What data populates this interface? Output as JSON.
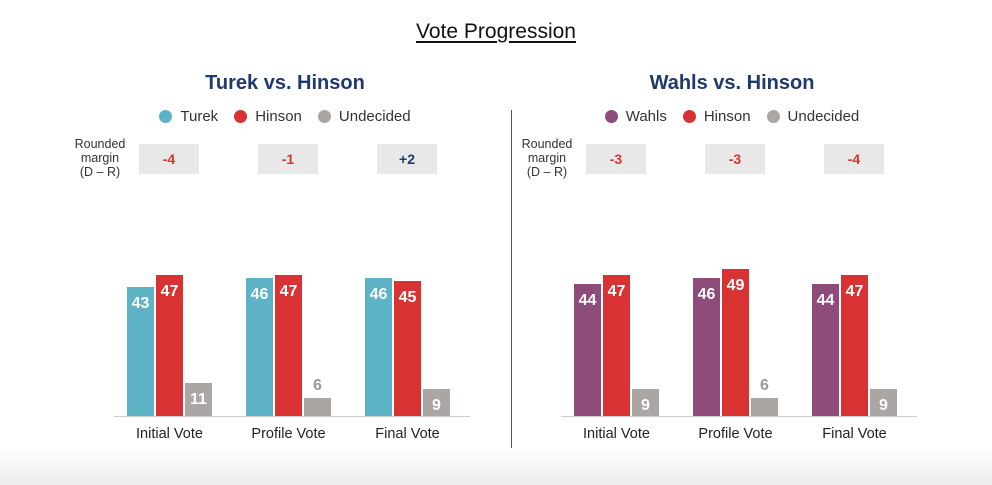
{
  "title": "Vote Progression",
  "colors": {
    "turek": "#5db2c6",
    "hinson": "#d93232",
    "undecided": "#aba6a4",
    "wahls": "#8e4c7b",
    "margin_negative": "#d93232",
    "margin_positive": "#1f3a6e"
  },
  "margin_label": [
    "Rounded",
    "margin",
    "(D – R)"
  ],
  "chart_data": [
    {
      "type": "bar",
      "title": "Turek vs. Hinson",
      "categories": [
        "Initial Vote",
        "Profile Vote",
        "Final Vote"
      ],
      "series": [
        {
          "name": "Turek",
          "values": [
            43,
            46,
            46
          ]
        },
        {
          "name": "Hinson",
          "values": [
            47,
            47,
            45
          ]
        },
        {
          "name": "Undecided",
          "values": [
            11,
            6,
            9
          ]
        }
      ],
      "margins": [
        "-4",
        "-1",
        "+2"
      ],
      "ylim": [
        0,
        50
      ]
    },
    {
      "type": "bar",
      "title": "Wahls vs. Hinson",
      "categories": [
        "Initial Vote",
        "Profile Vote",
        "Final Vote"
      ],
      "series": [
        {
          "name": "Wahls",
          "values": [
            44,
            46,
            44
          ]
        },
        {
          "name": "Hinson",
          "values": [
            47,
            49,
            47
          ]
        },
        {
          "name": "Undecided",
          "values": [
            9,
            6,
            9
          ]
        }
      ],
      "margins": [
        "-3",
        "-3",
        "-4"
      ],
      "ylim": [
        0,
        50
      ]
    }
  ]
}
